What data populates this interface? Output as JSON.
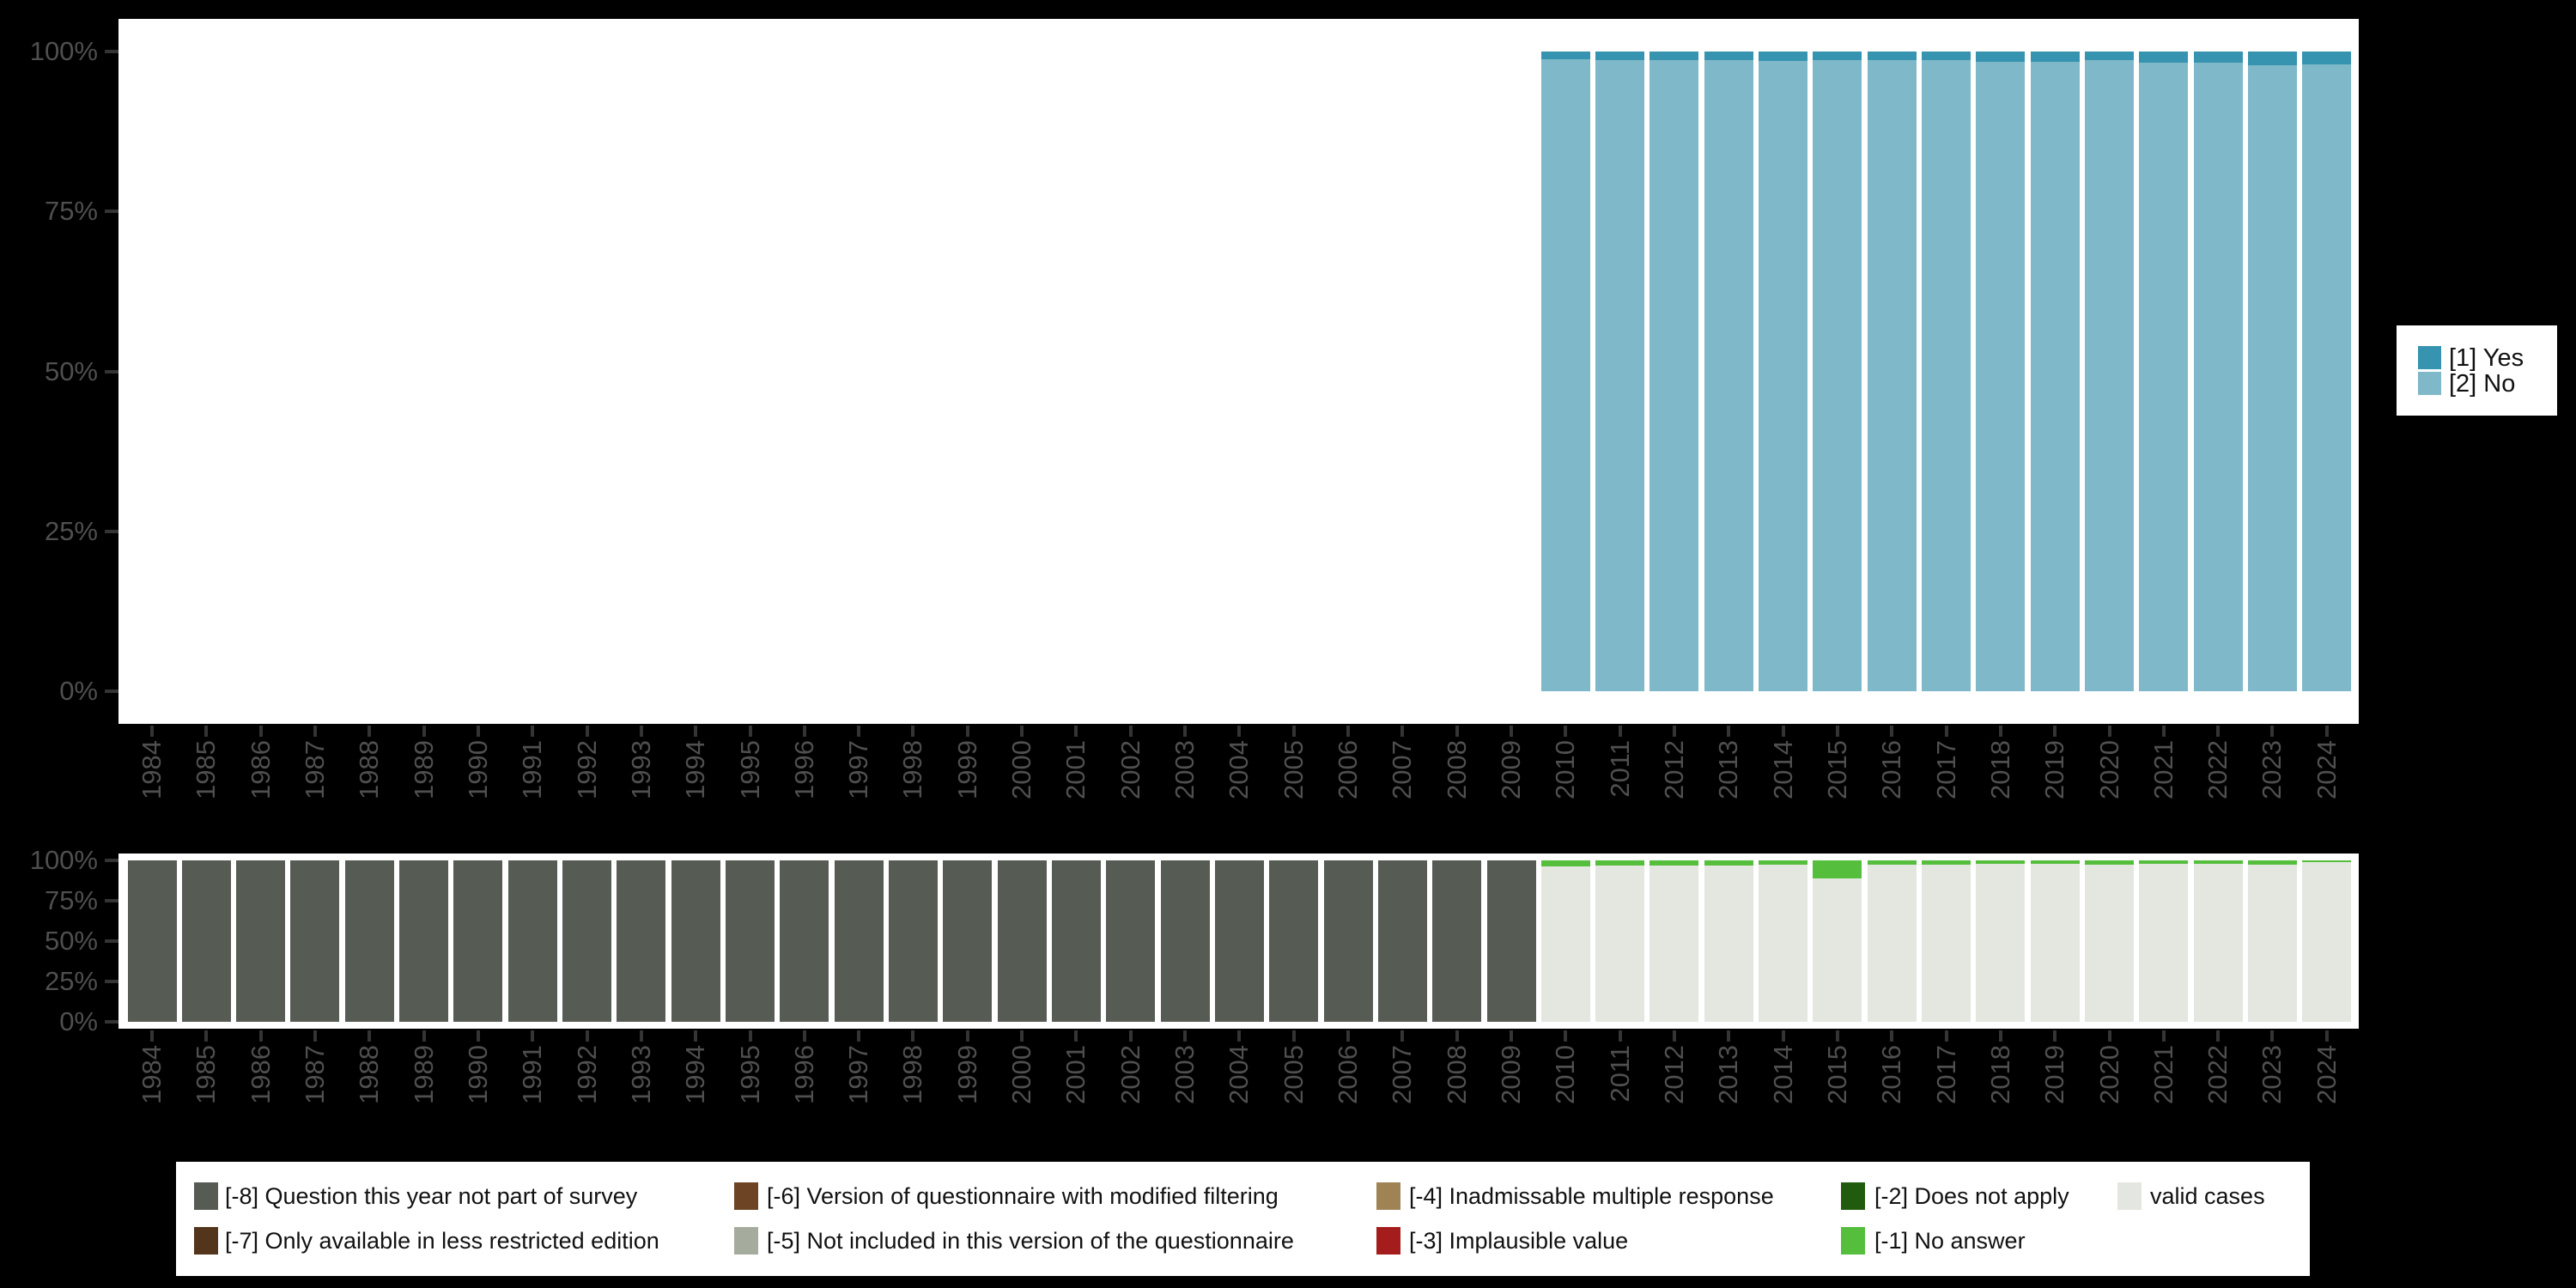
{
  "background_color": "#000000",
  "panel_color": "#ffffff",
  "axis": {
    "tick_color": "#343434",
    "label_color": "#4f4f4f"
  },
  "years": [
    "1984",
    "1985",
    "1986",
    "1987",
    "1988",
    "1989",
    "1990",
    "1991",
    "1992",
    "1993",
    "1994",
    "1995",
    "1996",
    "1997",
    "1998",
    "1999",
    "2000",
    "2001",
    "2002",
    "2003",
    "2004",
    "2005",
    "2006",
    "2007",
    "2008",
    "2009",
    "2010",
    "2011",
    "2012",
    "2013",
    "2014",
    "2015",
    "2016",
    "2017",
    "2018",
    "2019",
    "2020",
    "2021",
    "2022",
    "2023",
    "2024"
  ],
  "right_legend": [
    {
      "label": "[1] Yes",
      "color": "#3794b0"
    },
    {
      "label": "[2] No",
      "color": "#7fb8c9"
    }
  ],
  "bottom_legend": [
    {
      "label": "[-8] Question this year not part of survey",
      "color": "#565c54"
    },
    {
      "label": "[-7] Only available in less restricted edition",
      "color": "#52351b"
    },
    {
      "label": "[-6] Version of questionnaire with modified filtering",
      "color": "#6d4524"
    },
    {
      "label": "[-5] Not included in this version of the questionnaire",
      "color": "#a6ac9d"
    },
    {
      "label": "[-4] Inadmissable multiple response",
      "color": "#a08355"
    },
    {
      "label": "[-3] Implausible value",
      "color": "#a41c1c"
    },
    {
      "label": "[-2] Does not apply",
      "color": "#215c0e"
    },
    {
      "label": "[-1] No answer",
      "color": "#55be3c"
    },
    {
      "label": "valid cases",
      "color": "#e3e7e0"
    }
  ],
  "chart_data": [
    {
      "id": "answers-by-year",
      "type": "bar",
      "stacked": true,
      "title": "",
      "xlabel": "",
      "ylabel": "",
      "ylim": [
        0,
        100
      ],
      "y_tick_labels": [
        "100%",
        "75%",
        "50%",
        "25%",
        "0%"
      ],
      "grid": false,
      "legend_position": "right",
      "categories": [
        "1984",
        "1985",
        "1986",
        "1987",
        "1988",
        "1989",
        "1990",
        "1991",
        "1992",
        "1993",
        "1994",
        "1995",
        "1996",
        "1997",
        "1998",
        "1999",
        "2000",
        "2001",
        "2002",
        "2003",
        "2004",
        "2005",
        "2006",
        "2007",
        "2008",
        "2009",
        "2010",
        "2011",
        "2012",
        "2013",
        "2014",
        "2015",
        "2016",
        "2017",
        "2018",
        "2019",
        "2020",
        "2021",
        "2022",
        "2023",
        "2024"
      ],
      "series": [
        {
          "name": "[1] Yes",
          "color": "#3794b0",
          "values": [
            null,
            null,
            null,
            null,
            null,
            null,
            null,
            null,
            null,
            null,
            null,
            null,
            null,
            null,
            null,
            null,
            null,
            null,
            null,
            null,
            null,
            null,
            null,
            null,
            null,
            null,
            1.2,
            1.4,
            1.3,
            1.3,
            1.5,
            1.3,
            1.3,
            1.4,
            1.6,
            1.6,
            1.3,
            1.8,
            1.7,
            2.1,
            2.0
          ]
        },
        {
          "name": "[2] No",
          "color": "#7fb8c9",
          "values": [
            null,
            null,
            null,
            null,
            null,
            null,
            null,
            null,
            null,
            null,
            null,
            null,
            null,
            null,
            null,
            null,
            null,
            null,
            null,
            null,
            null,
            null,
            null,
            null,
            null,
            null,
            98.8,
            98.6,
            98.7,
            98.7,
            98.5,
            98.7,
            98.7,
            98.6,
            98.4,
            98.4,
            98.7,
            98.2,
            98.3,
            97.9,
            98.0
          ]
        }
      ]
    },
    {
      "id": "missing-values-by-year",
      "type": "bar",
      "stacked": true,
      "title": "",
      "xlabel": "",
      "ylabel": "",
      "ylim": [
        0,
        100
      ],
      "y_tick_labels": [
        "100%",
        "75%",
        "50%",
        "25%",
        "0%"
      ],
      "grid": false,
      "legend_position": "bottom",
      "categories": [
        "1984",
        "1985",
        "1986",
        "1987",
        "1988",
        "1989",
        "1990",
        "1991",
        "1992",
        "1993",
        "1994",
        "1995",
        "1996",
        "1997",
        "1998",
        "1999",
        "2000",
        "2001",
        "2002",
        "2003",
        "2004",
        "2005",
        "2006",
        "2007",
        "2008",
        "2009",
        "2010",
        "2011",
        "2012",
        "2013",
        "2014",
        "2015",
        "2016",
        "2017",
        "2018",
        "2019",
        "2020",
        "2021",
        "2022",
        "2023",
        "2024"
      ],
      "series": [
        {
          "name": "[-1] No answer",
          "color": "#55be3c",
          "values": [
            null,
            null,
            null,
            null,
            null,
            null,
            null,
            null,
            null,
            null,
            null,
            null,
            null,
            null,
            null,
            null,
            null,
            null,
            null,
            null,
            null,
            null,
            null,
            null,
            null,
            null,
            3.9,
            3.4,
            3.0,
            3.0,
            2.5,
            11.4,
            2.9,
            2.9,
            2.1,
            1.9,
            2.4,
            2.1,
            2.1,
            2.9,
            1.2
          ]
        },
        {
          "name": "valid cases",
          "color": "#e3e7e0",
          "values": [
            null,
            null,
            null,
            null,
            null,
            null,
            null,
            null,
            null,
            null,
            null,
            null,
            null,
            null,
            null,
            null,
            null,
            null,
            null,
            null,
            null,
            null,
            null,
            null,
            null,
            null,
            96.1,
            96.6,
            97.0,
            97.0,
            97.5,
            88.6,
            97.1,
            97.1,
            97.9,
            98.1,
            97.6,
            97.9,
            97.9,
            97.1,
            98.8
          ]
        },
        {
          "name": "[-8] Question this year not part of survey",
          "color": "#565c54",
          "values": [
            100,
            100,
            100,
            100,
            100,
            100,
            100,
            100,
            100,
            100,
            100,
            100,
            100,
            100,
            100,
            100,
            100,
            100,
            100,
            100,
            100,
            100,
            100,
            100,
            100,
            100,
            null,
            null,
            null,
            null,
            null,
            null,
            null,
            null,
            null,
            null,
            null,
            null,
            null,
            null,
            null
          ]
        }
      ]
    }
  ]
}
